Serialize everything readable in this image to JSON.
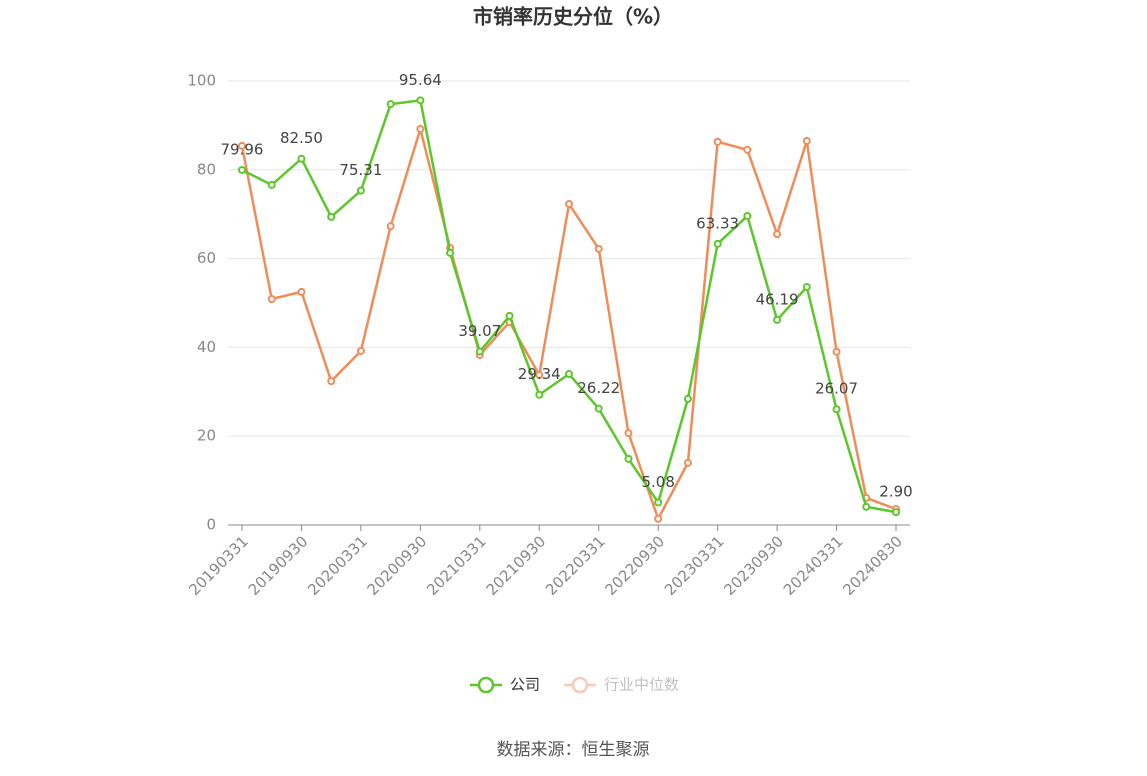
{
  "chart_data": {
    "type": "line",
    "title": "市销率历史分位（%）",
    "categories": [
      "20190331",
      null,
      "20190930",
      null,
      "20200331",
      null,
      "20200930",
      null,
      "20210331",
      null,
      "20210930",
      null,
      "20220331",
      null,
      "20220930",
      null,
      "20230331",
      null,
      "20230930",
      null,
      "20240331",
      null,
      "20240830"
    ],
    "series": [
      {
        "name": "公司",
        "color": "#5cc72a",
        "values": [
          79.96,
          76.6,
          82.5,
          69.4,
          75.31,
          94.8,
          95.64,
          61.3,
          39.07,
          47.1,
          29.34,
          34.0,
          26.22,
          14.9,
          5.08,
          28.4,
          63.33,
          69.6,
          46.19,
          53.6,
          26.07,
          4.1,
          2.9
        ],
        "value_labels": [
          "79.96",
          null,
          "82.50",
          null,
          "75.31",
          null,
          "95.64",
          null,
          "39.07",
          null,
          "29.34",
          null,
          "26.22",
          null,
          "5.08",
          null,
          "63.33",
          null,
          "46.19",
          null,
          "26.07",
          null,
          "2.90"
        ]
      },
      {
        "name": "行业中位数",
        "color": "#f08c5a",
        "values": [
          85.4,
          50.9,
          52.5,
          32.4,
          39.2,
          67.3,
          89.2,
          62.4,
          38.3,
          45.7,
          33.8,
          72.3,
          62.2,
          20.7,
          1.4,
          14.0,
          86.3,
          84.5,
          65.5,
          86.5,
          39.0,
          6.1,
          3.6
        ]
      }
    ],
    "ylim": [
      0,
      100
    ],
    "yticks": [
      0,
      20,
      40,
      60,
      80,
      100
    ],
    "grid": true,
    "legend": "bottom",
    "source": "数据来源：恒生聚源"
  }
}
